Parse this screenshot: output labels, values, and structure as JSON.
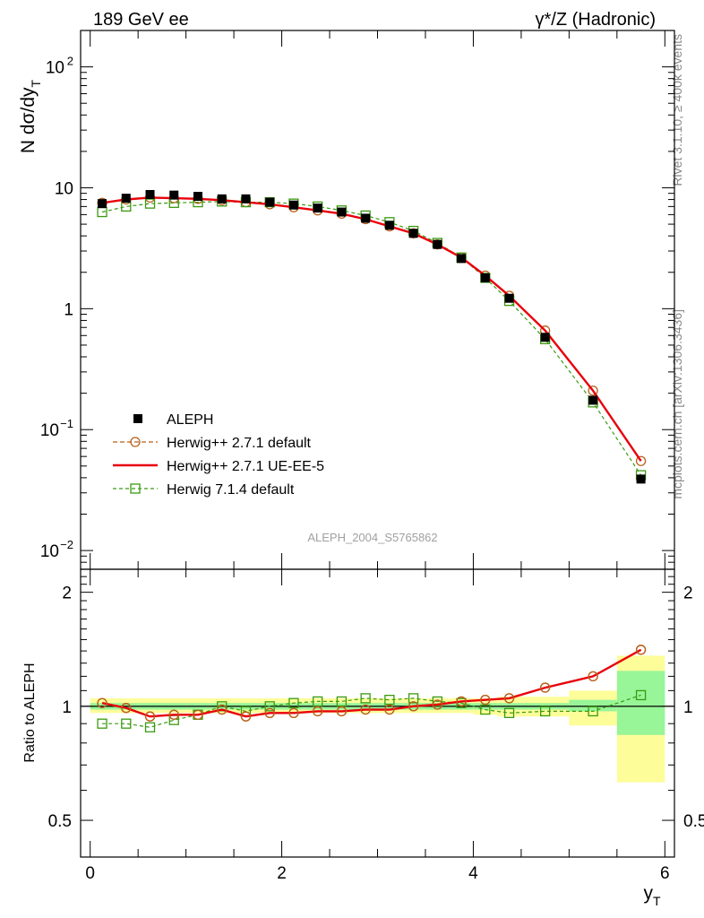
{
  "header": {
    "left": "189 GeV ee",
    "right": "γ*/Z (Hadronic)"
  },
  "side_labels": {
    "rivet": "Rivet 3.1.10, ≥ 400k events",
    "source": "mcplots.cern.ch [arXiv:1306.3436]"
  },
  "analysis_tag": "ALEPH_2004_S5765862",
  "colors": {
    "data": "#000000",
    "herwigpp_default": "#b8621b",
    "herwigpp_ueee5": "#e8000b",
    "herwig7": "#3a9a10",
    "band_inner": "#98f598",
    "band_outer": "#fdfd9a"
  },
  "chart_data": [
    {
      "type": "scatter",
      "panel": "main",
      "ylabel": "N dσ/dy_T",
      "yscale": "log",
      "ylim": [
        0.007,
        200
      ],
      "xlim": [
        -0.1,
        6.1
      ],
      "y_ticks": [
        {
          "value": 100,
          "base": "10",
          "exp": "2"
        },
        {
          "value": 10,
          "base": "10",
          "exp": ""
        },
        {
          "value": 1,
          "base": "1",
          "exp": ""
        },
        {
          "value": 0.1,
          "base": "10",
          "exp": "−1"
        },
        {
          "value": 0.01,
          "base": "10",
          "exp": "−2"
        }
      ],
      "legend_position": "lower-left",
      "x": [
        0.125,
        0.375,
        0.625,
        0.875,
        1.125,
        1.375,
        1.625,
        1.875,
        2.125,
        2.375,
        2.625,
        2.875,
        3.125,
        3.375,
        3.625,
        3.875,
        4.125,
        4.375,
        4.75,
        5.25,
        5.75
      ],
      "series": [
        {
          "name": "ALEPH",
          "style": "data",
          "values": [
            7.4,
            8.2,
            8.8,
            8.7,
            8.5,
            8.1,
            8.1,
            7.6,
            7.2,
            6.8,
            6.3,
            5.6,
            4.9,
            4.2,
            3.4,
            2.6,
            1.8,
            1.22,
            0.58,
            0.175,
            0.039
          ]
        },
        {
          "name": "Herwig++ 2.7.1 default",
          "style": "herwigpp_default",
          "values": [
            7.5,
            8.0,
            8.3,
            8.2,
            8.1,
            7.9,
            7.6,
            7.3,
            6.9,
            6.5,
            6.1,
            5.5,
            4.8,
            4.2,
            3.4,
            2.65,
            1.88,
            1.28,
            0.66,
            0.21,
            0.055
          ]
        },
        {
          "name": "Herwig++ 2.7.1 UE-EE-5",
          "style": "herwigpp_ueee5",
          "values": [
            7.5,
            8.0,
            8.3,
            8.2,
            8.1,
            7.9,
            7.6,
            7.3,
            6.9,
            6.5,
            6.1,
            5.5,
            4.8,
            4.2,
            3.4,
            2.65,
            1.88,
            1.28,
            0.66,
            0.21,
            0.055
          ]
        },
        {
          "name": "Herwig 7.1.4 default",
          "style": "herwig7",
          "values": [
            6.3,
            7.0,
            7.4,
            7.5,
            7.6,
            7.7,
            7.6,
            7.6,
            7.4,
            7.0,
            6.5,
            5.9,
            5.2,
            4.4,
            3.5,
            2.65,
            1.8,
            1.16,
            0.56,
            0.168,
            0.042
          ]
        }
      ]
    },
    {
      "type": "line",
      "panel": "ratio",
      "ylabel": "Ratio to ALEPH",
      "xlabel": "y_T",
      "ylim": [
        0.4,
        2.3
      ],
      "xlim": [
        -0.1,
        6.1
      ],
      "x_ticks": [
        "0",
        "2",
        "4",
        "6"
      ],
      "y_ticks": [
        "0.5",
        "1",
        "2"
      ],
      "x": [
        0.125,
        0.375,
        0.625,
        0.875,
        1.125,
        1.375,
        1.625,
        1.875,
        2.125,
        2.375,
        2.625,
        2.875,
        3.125,
        3.375,
        3.625,
        3.875,
        4.125,
        4.375,
        4.75,
        5.25,
        5.75
      ],
      "bin_edges": [
        0,
        0.25,
        0.5,
        0.75,
        1.0,
        1.25,
        1.5,
        1.75,
        2.0,
        2.25,
        2.5,
        2.75,
        3.0,
        3.25,
        3.5,
        3.75,
        4.0,
        4.25,
        4.5,
        5.0,
        5.5,
        6.0
      ],
      "band_inner": [
        [
          0.98,
          1.02
        ],
        [
          0.98,
          1.02
        ],
        [
          0.98,
          1.02
        ],
        [
          0.98,
          1.02
        ],
        [
          0.98,
          1.02
        ],
        [
          0.98,
          1.02
        ],
        [
          0.98,
          1.02
        ],
        [
          0.98,
          1.02
        ],
        [
          0.98,
          1.02
        ],
        [
          0.98,
          1.02
        ],
        [
          0.98,
          1.02
        ],
        [
          0.98,
          1.02
        ],
        [
          0.98,
          1.02
        ],
        [
          0.98,
          1.02
        ],
        [
          0.98,
          1.02
        ],
        [
          0.98,
          1.02
        ],
        [
          0.98,
          1.02
        ],
        [
          0.98,
          1.02
        ],
        [
          0.98,
          1.02
        ],
        [
          0.97,
          1.04
        ],
        [
          0.84,
          1.24
        ]
      ],
      "band_outer": [
        [
          0.96,
          1.05
        ],
        [
          0.96,
          1.05
        ],
        [
          0.96,
          1.05
        ],
        [
          0.96,
          1.05
        ],
        [
          0.96,
          1.05
        ],
        [
          0.96,
          1.05
        ],
        [
          0.96,
          1.05
        ],
        [
          0.96,
          1.05
        ],
        [
          0.96,
          1.05
        ],
        [
          0.96,
          1.05
        ],
        [
          0.96,
          1.05
        ],
        [
          0.96,
          1.05
        ],
        [
          0.96,
          1.05
        ],
        [
          0.96,
          1.05
        ],
        [
          0.96,
          1.05
        ],
        [
          0.96,
          1.05
        ],
        [
          0.95,
          1.05
        ],
        [
          0.94,
          1.06
        ],
        [
          0.94,
          1.06
        ],
        [
          0.89,
          1.1
        ],
        [
          0.63,
          1.36
        ]
      ],
      "series": [
        {
          "name": "Herwig++ 2.7.1 default",
          "style": "herwigpp_default",
          "values": [
            1.02,
            0.99,
            0.94,
            0.95,
            0.95,
            0.98,
            0.94,
            0.96,
            0.96,
            0.97,
            0.97,
            0.98,
            0.98,
            1.0,
            1.01,
            1.03,
            1.04,
            1.05,
            1.12,
            1.2,
            1.41
          ]
        },
        {
          "name": "Herwig++ 2.7.1 UE-EE-5",
          "style": "herwigpp_ueee5",
          "values": [
            1.02,
            0.99,
            0.94,
            0.95,
            0.95,
            0.98,
            0.94,
            0.96,
            0.96,
            0.97,
            0.97,
            0.98,
            0.98,
            1.0,
            1.01,
            1.03,
            1.04,
            1.05,
            1.12,
            1.2,
            1.41
          ]
        },
        {
          "name": "Herwig 7.1.4 default",
          "style": "herwig7",
          "values": [
            0.9,
            0.9,
            0.88,
            0.92,
            0.95,
            1.0,
            0.97,
            1.0,
            1.02,
            1.03,
            1.03,
            1.05,
            1.04,
            1.05,
            1.03,
            1.02,
            0.98,
            0.96,
            0.97,
            0.97,
            1.07
          ]
        }
      ]
    }
  ]
}
